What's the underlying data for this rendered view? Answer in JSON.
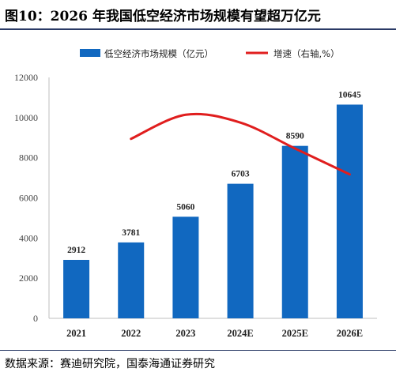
{
  "title": "图10：2026 年我国低空经济市场规模有望超万亿元",
  "source": "数据来源：赛迪研究院，国泰海通证券研究",
  "colors": {
    "bar": "#1168c0",
    "line": "#e01e1e",
    "rule": "#2a3a66"
  },
  "chart_data": {
    "type": "bar",
    "categories": [
      "2021",
      "2022",
      "2023",
      "2024E",
      "2025E",
      "2026E"
    ],
    "series": [
      {
        "name": "低空经济市场规模（亿元）",
        "type": "bar",
        "axis": "left",
        "values": [
          2912,
          3781,
          5060,
          6703,
          8590,
          10645
        ]
      },
      {
        "name": "增速（右轴,%）",
        "type": "line",
        "axis": "right",
        "x": [
          "2022",
          "2023",
          "2024E",
          "2025E",
          "2026E"
        ],
        "values": [
          29.8,
          33.8,
          32.5,
          28.2,
          23.9
        ]
      }
    ],
    "ylim": [
      0,
      12000
    ],
    "yticks": [
      0,
      2000,
      4000,
      6000,
      8000,
      10000,
      12000
    ],
    "legend": "top",
    "grid": false
  }
}
